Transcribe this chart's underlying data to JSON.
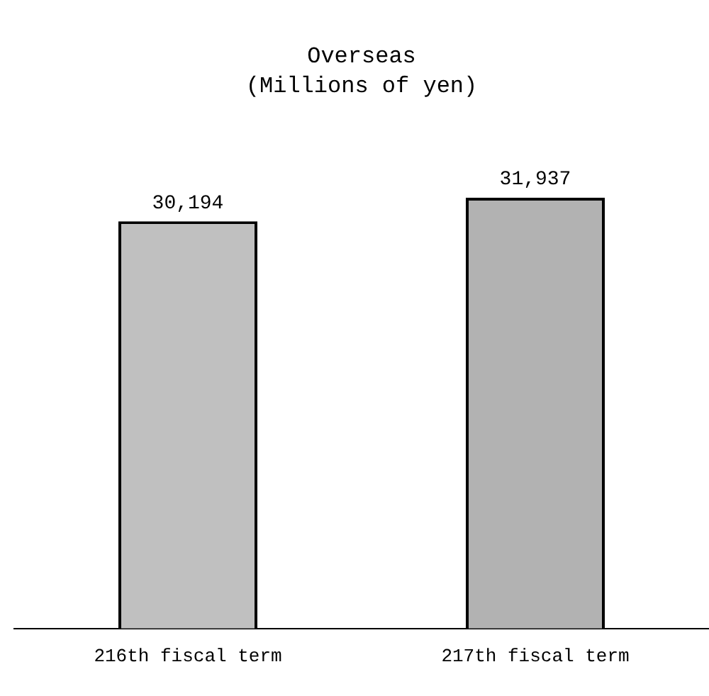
{
  "chart_data": {
    "type": "bar",
    "title": "Overseas",
    "subtitle": "(Millions of yen)",
    "categories": [
      "216th fiscal term",
      "217th fiscal term"
    ],
    "values": [
      30194,
      31937
    ],
    "colors": [
      "#c0c0c0",
      "#b2b2b2"
    ],
    "value_labels": [
      "30,194",
      "31,937"
    ],
    "grid": false,
    "legend": false
  }
}
